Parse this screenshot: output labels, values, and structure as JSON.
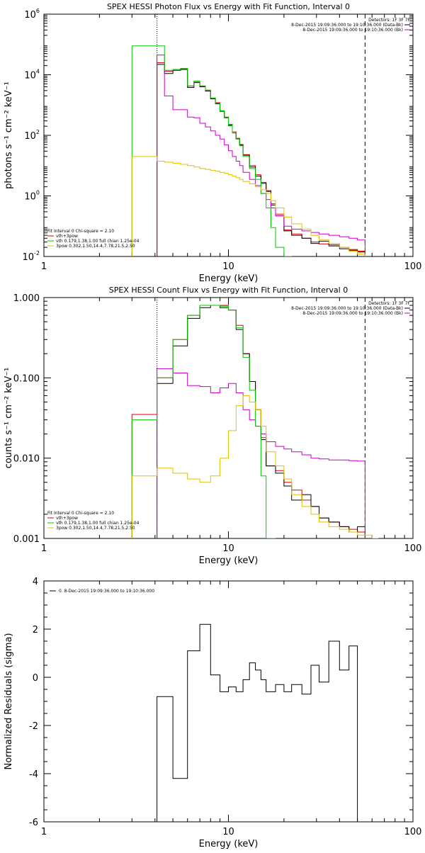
{
  "chart_data": [
    {
      "type": "line",
      "title": "SPEX HESSI Photon Flux vs Energy with Fit Function, Interval 0",
      "xlabel": "Energy (keV)",
      "ylabel": "photons s⁻¹ cm⁻² keV⁻¹",
      "xscale": "log",
      "yscale": "log",
      "xlim": [
        1,
        100
      ],
      "ylim": [
        0.01,
        1000000
      ],
      "xticks": [
        "1",
        "10",
        "100"
      ],
      "yticks": [
        {
          "value": 0.01,
          "base": "10",
          "exp": "-2"
        },
        {
          "value": 1,
          "base": "10",
          "exp": "0"
        },
        {
          "value": 100,
          "base": "10",
          "exp": "2"
        },
        {
          "value": 10000,
          "base": "10",
          "exp": "4"
        },
        {
          "value": 1000000,
          "base": "10",
          "exp": "6"
        }
      ],
      "vlines": [
        {
          "x": 4.1,
          "style": "dotted"
        },
        {
          "x": 55,
          "style": "dashed"
        }
      ],
      "detectors_label": "Detectors: 1F 3F 7F",
      "legend_top_right": [
        {
          "text": "8-Dec-2015 19:09:36.000 to 19:10:36.000 (Data-Bk)",
          "color": "#000000"
        },
        {
          "text": "8-Dec-2015 19:09:36.000 to 19:10:36.000 (Bk)",
          "color": "#c800c8"
        }
      ],
      "legend_bottom_left": {
        "header": "Fit Interval 0   Chi-square = 2.10",
        "items": [
          {
            "text": "vth+3pow",
            "color": "#e00000"
          },
          {
            "text": "vth 0.179,1.38,1.00  full chian 1.25e-04",
            "color": "#00c800"
          },
          {
            "text": "3pow 0.302,1.50,14.4,7.78,21.5,2.50",
            "color": "#e0c000"
          }
        ]
      },
      "edges": [
        3,
        4.1,
        4.5,
        5,
        5.5,
        6,
        6.5,
        7,
        7.5,
        8,
        8.5,
        9,
        9.5,
        10,
        10.5,
        11,
        11.5,
        12,
        13,
        14,
        15,
        16,
        17,
        18,
        20,
        22,
        25,
        28,
        31,
        35,
        40,
        45,
        50,
        55
      ],
      "series": [
        {
          "name": "vth+3pow",
          "color": "#e00000",
          "values": [
            null,
            25000,
            13000,
            15000,
            16000,
            4200,
            6000,
            4300,
            3100,
            1700,
            1200,
            650,
            400,
            230,
            130,
            80,
            50,
            23,
            10,
            5,
            2.8,
            1.5,
            0.55,
            0.25,
            0.075,
            0.055,
            0.04,
            0.03,
            0.026,
            0.022,
            0.02,
            0.017,
            0.015
          ]
        },
        {
          "name": "data-bk",
          "color": "#000000",
          "values": [
            null,
            22000,
            11000,
            14000,
            15000,
            3800,
            5500,
            4000,
            2900,
            1600,
            1100,
            620,
            380,
            210,
            120,
            75,
            47,
            22,
            9,
            4.5,
            2.6,
            1.4,
            0.5,
            0.22,
            0.07,
            0.05,
            0.04,
            0.027,
            0.032,
            0.024,
            0.018,
            0.016,
            0.014
          ]
        },
        {
          "name": "bk",
          "color": "#c800c8",
          "values": [
            null,
            45000,
            2000,
            700,
            700,
            400,
            380,
            250,
            190,
            140,
            100,
            75,
            48,
            31,
            20,
            14,
            10,
            6,
            3.5,
            2.2,
            1.2,
            0.75,
            0.4,
            0.22,
            0.1,
            0.08,
            0.07,
            0.062,
            0.055,
            0.05,
            0.045,
            0.04,
            0.035
          ]
        },
        {
          "name": "vth",
          "color": "#00c800",
          "values": [
            90000,
            90000,
            14000,
            15000,
            16000,
            4300,
            6200,
            4300,
            3100,
            1700,
            1150,
            640,
            390,
            220,
            120,
            75,
            45,
            20,
            8,
            3.5,
            1.2,
            0.4,
            0.09,
            0.02,
            0.002,
            null,
            null,
            null,
            null,
            null,
            null,
            null,
            null
          ]
        },
        {
          "name": "3pow",
          "color": "#e0c000",
          "values": [
            20,
            14,
            13,
            12,
            11,
            10,
            9,
            8,
            7.5,
            7,
            6.5,
            6,
            5.5,
            5,
            4.5,
            4,
            3.5,
            3,
            2.5,
            2,
            1.6,
            1.2,
            0.7,
            0.4,
            0.2,
            0.12,
            0.08,
            0.05,
            0.036,
            0.027,
            0.02,
            0.015,
            0.012
          ]
        }
      ]
    },
    {
      "type": "line",
      "title": "SPEX HESSI Count Flux vs Energy with Fit Function, Interval 0",
      "xlabel": "Energy (keV)",
      "ylabel": "counts s⁻¹ cm⁻² keV⁻¹",
      "xscale": "log",
      "yscale": "log",
      "xlim": [
        1,
        100
      ],
      "ylim": [
        0.001,
        1
      ],
      "xticks": [
        "1",
        "10",
        "100"
      ],
      "yticks": [
        {
          "value": 0.001,
          "label": "0.001"
        },
        {
          "value": 0.01,
          "label": "0.010"
        },
        {
          "value": 0.1,
          "label": "0.100"
        },
        {
          "value": 1,
          "label": "1.000"
        }
      ],
      "vlines": [
        {
          "x": 4.1,
          "style": "dotted"
        },
        {
          "x": 55,
          "style": "dashed"
        }
      ],
      "detectors_label": "Detectors: 1F 3F 7F",
      "legend_top_right": [
        {
          "text": "8-Dec-2015 19:09:36.000 to 19:10:36.000 (Data-Bk)",
          "color": "#000000"
        },
        {
          "text": "8-Dec-2015 19:09:36.000 to 19:10:36.000 (Bk)",
          "color": "#c800c8"
        }
      ],
      "legend_bottom_left": {
        "header": "Fit Interval 0   Chi-square = 2.10",
        "items": [
          {
            "text": "vth+3pow",
            "color": "#e00000"
          },
          {
            "text": "vth 0.179,1.38,1.00  full chian 1.25e-04",
            "color": "#00c800"
          },
          {
            "text": "3pow 0.302,1.50,14.4,7.78,21.5,2.50",
            "color": "#e0c000"
          }
        ]
      },
      "edges": [
        3,
        4.1,
        5,
        6,
        7,
        8,
        9,
        10,
        11,
        12,
        13,
        14,
        15,
        16,
        18,
        20,
        22,
        25,
        28,
        31,
        35,
        40,
        45,
        50,
        55,
        60,
        65
      ],
      "series": [
        {
          "name": "vth+3pow",
          "color": "#e00000",
          "values": [
            0.035,
            0.1,
            0.3,
            0.6,
            0.8,
            0.8,
            0.8,
            0.7,
            0.45,
            0.2,
            0.09,
            0.04,
            0.018,
            0.008,
            0.007,
            0.005,
            0.004,
            0.003,
            0.0025,
            0.0018,
            0.0016,
            0.0014,
            0.0013,
            0.0012,
            null,
            null
          ]
        },
        {
          "name": "data-bk",
          "color": "#000000",
          "values": [
            null,
            0.085,
            0.25,
            0.55,
            0.75,
            0.8,
            0.75,
            0.7,
            0.4,
            0.2,
            0.09,
            0.04,
            0.017,
            0.008,
            0.0065,
            0.0045,
            0.003,
            0.0035,
            0.0025,
            0.0018,
            0.0016,
            0.0014,
            0.0012,
            0.0014,
            null,
            null
          ]
        },
        {
          "name": "bk",
          "color": "#c800c8",
          "values": [
            null,
            0.13,
            0.115,
            0.08,
            0.078,
            0.065,
            0.075,
            0.085,
            0.065,
            0.04,
            0.03,
            0.025,
            0.02,
            0.016,
            0.014,
            0.013,
            0.012,
            0.011,
            0.01,
            0.0098,
            0.0095,
            0.0095,
            0.0093,
            0.0092,
            null,
            null
          ]
        },
        {
          "name": "vth",
          "color": "#00c800",
          "values": [
            0.03,
            0.1,
            0.3,
            0.6,
            0.8,
            0.8,
            0.78,
            0.7,
            0.42,
            0.18,
            0.07,
            0.025,
            0.006,
            0.001,
            null,
            null,
            null,
            null,
            null,
            null,
            null,
            null,
            null,
            null,
            null,
            null
          ]
        },
        {
          "name": "3pow",
          "color": "#e0c000",
          "values": [
            0.006,
            0.0075,
            0.0065,
            0.0055,
            0.005,
            0.006,
            0.01,
            0.022,
            0.045,
            0.06,
            0.05,
            0.04,
            0.025,
            0.012,
            0.008,
            0.0055,
            0.0035,
            0.0025,
            0.002,
            0.0016,
            0.0014,
            0.0013,
            0.0012,
            0.0011,
            0.0011,
            0.001
          ]
        }
      ]
    },
    {
      "type": "line",
      "title": "",
      "xlabel": "Energy (keV)",
      "ylabel": "Normalized Residuals (sigma)",
      "xscale": "log",
      "yscale": "linear",
      "xlim": [
        1,
        100
      ],
      "ylim": [
        -6,
        4
      ],
      "xticks": [
        "1",
        "10",
        "100"
      ],
      "yticks": [
        "-6",
        "-4",
        "-2",
        "0",
        "2",
        "4"
      ],
      "legend_top_left": [
        {
          "text": "0. 8-Dec-2015 19:09:36.000 to 19:10:36.000",
          "color": "#000000"
        }
      ],
      "edges": [
        4.1,
        5,
        6,
        7,
        8,
        9,
        10,
        11,
        12,
        13,
        14,
        15,
        16,
        18,
        20,
        22,
        25,
        28,
        31,
        35,
        40,
        45,
        50,
        55
      ],
      "series": [
        {
          "name": "0. 8-Dec-2015 19:09:36.000 to 19:10:36.000",
          "color": "#000000",
          "values": [
            -0.8,
            -4.2,
            1.1,
            2.2,
            0.1,
            -0.6,
            -0.4,
            -0.6,
            -0.1,
            0.6,
            0.3,
            -0.1,
            -0.6,
            -0.3,
            -0.6,
            -0.3,
            -0.7,
            0.5,
            -0.2,
            1.5,
            0.3,
            1.3,
            -6.5
          ]
        }
      ]
    }
  ]
}
